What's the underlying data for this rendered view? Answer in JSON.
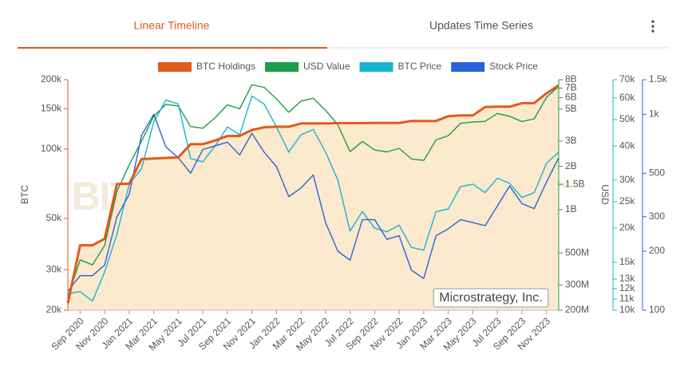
{
  "tabs": [
    {
      "label": "Linear Timeline",
      "active": true
    },
    {
      "label": "Updates Time Series",
      "active": false
    }
  ],
  "chart_data": {
    "type": "line",
    "legend": "top",
    "ylabel": "BTC",
    "y2label": "USD",
    "watermark": "BITCOINTREASURIES.NET",
    "annotation": "Microstrategy, Inc.",
    "log_scale": true,
    "grid": false,
    "x": [
      "2020-08",
      "2020-09",
      "2020-10",
      "2020-11",
      "2020-12",
      "2021-01",
      "2021-02",
      "2021-03",
      "2021-04",
      "2021-05",
      "2021-06",
      "2021-07",
      "2021-08",
      "2021-09",
      "2021-10",
      "2021-11",
      "2021-12",
      "2022-01",
      "2022-02",
      "2022-03",
      "2022-04",
      "2022-05",
      "2022-06",
      "2022-07",
      "2022-08",
      "2022-09",
      "2022-10",
      "2022-11",
      "2022-12",
      "2023-01",
      "2023-02",
      "2023-03",
      "2023-04",
      "2023-05",
      "2023-06",
      "2023-07",
      "2023-08",
      "2023-09",
      "2023-10",
      "2023-11",
      "2023-12"
    ],
    "xlim": [
      "2020-08",
      "2023-12"
    ],
    "xticks": [
      {
        "value": "2020-09",
        "label": "Sep 2020"
      },
      {
        "value": "2020-11",
        "label": "Nov 2020"
      },
      {
        "value": "2021-01",
        "label": "Jan 2021"
      },
      {
        "value": "2021-03",
        "label": "Mar 2021"
      },
      {
        "value": "2021-05",
        "label": "May 2021"
      },
      {
        "value": "2021-07",
        "label": "Jul 2021"
      },
      {
        "value": "2021-09",
        "label": "Sep 2021"
      },
      {
        "value": "2021-11",
        "label": "Nov 2021"
      },
      {
        "value": "2022-01",
        "label": "Jan 2022"
      },
      {
        "value": "2022-03",
        "label": "Mar 2022"
      },
      {
        "value": "2022-05",
        "label": "May 2022"
      },
      {
        "value": "2022-07",
        "label": "Jul 2022"
      },
      {
        "value": "2022-09",
        "label": "Sep 2022"
      },
      {
        "value": "2022-11",
        "label": "Nov 2022"
      },
      {
        "value": "2023-01",
        "label": "Jan 2023"
      },
      {
        "value": "2023-03",
        "label": "Mar 2023"
      },
      {
        "value": "2023-05",
        "label": "May 2023"
      },
      {
        "value": "2023-07",
        "label": "Jul 2023"
      },
      {
        "value": "2023-09",
        "label": "Sep 2023"
      },
      {
        "value": "2023-11",
        "label": "Nov 2023"
      }
    ],
    "ylim": [
      20000,
      200000
    ],
    "yticks": [
      {
        "value": 20000,
        "label": "20k"
      },
      {
        "value": 30000,
        "label": "30k"
      },
      {
        "value": 50000,
        "label": "50k"
      },
      {
        "value": 100000,
        "label": "100k"
      },
      {
        "value": 150000,
        "label": "150k"
      },
      {
        "value": 200000,
        "label": "200k"
      }
    ],
    "y2lim": [
      200000000,
      8000000000
    ],
    "y2ticks": [
      {
        "value": 200000000,
        "label": "200M"
      },
      {
        "value": 300000000,
        "label": "300M"
      },
      {
        "value": 500000000,
        "label": "500M"
      },
      {
        "value": 1000000000,
        "label": "1B"
      },
      {
        "value": 1500000000,
        "label": "1.5B"
      },
      {
        "value": 2000000000,
        "label": "2B"
      },
      {
        "value": 3000000000,
        "label": "3B"
      },
      {
        "value": 5000000000,
        "label": "5B"
      },
      {
        "value": 6000000000,
        "label": "6B"
      },
      {
        "value": 7000000000,
        "label": "7B"
      },
      {
        "value": 8000000000,
        "label": "8B"
      }
    ],
    "y3lim": [
      10000,
      70000
    ],
    "y3ticks": [
      {
        "value": 10000,
        "label": "10k"
      },
      {
        "value": 11000,
        "label": "11k"
      },
      {
        "value": 12000,
        "label": "12k"
      },
      {
        "value": 13000,
        "label": "13k"
      },
      {
        "value": 15000,
        "label": "15k"
      },
      {
        "value": 20000,
        "label": "20k"
      },
      {
        "value": 25000,
        "label": "25k"
      },
      {
        "value": 30000,
        "label": "30k"
      },
      {
        "value": 40000,
        "label": "40k"
      },
      {
        "value": 50000,
        "label": "50k"
      },
      {
        "value": 60000,
        "label": "60k"
      },
      {
        "value": 70000,
        "label": "70k"
      }
    ],
    "y4lim": [
      100,
      1500
    ],
    "y4ticks": [
      100,
      200,
      300,
      500,
      {
        "value": 1000,
        "label": "1k"
      },
      {
        "value": 1500,
        "label": "1.5k"
      }
    ],
    "series": [
      {
        "name": "BTC Holdings",
        "color": "#e05a1a",
        "fill": "#fbe9cd",
        "axis": "y",
        "values": [
          21454,
          38250,
          38250,
          40824,
          70470,
          70784,
          90531,
          91064,
          91579,
          92079,
          105085,
          105085,
          108992,
          114042,
          114042,
          121044,
          124391,
          125051,
          125051,
          129218,
          129218,
          129218,
          129699,
          129699,
          129699,
          130000,
          130000,
          130000,
          132500,
          132500,
          132500,
          138955,
          140000,
          140000,
          152333,
          152800,
          152800,
          158245,
          158400,
          174530,
          189150
        ]
      },
      {
        "name": "USD Value",
        "color": "#1a9e48",
        "axis": "y2",
        "values": [
          247000000,
          448000000,
          413000000,
          563000000,
          1340000000,
          2050000000,
          2990000000,
          4460000000,
          5400000000,
          5250000000,
          3780000000,
          3680000000,
          4360000000,
          5360000000,
          5020000000,
          7380000000,
          7090000000,
          5880000000,
          4750000000,
          5690000000,
          5940000000,
          4910000000,
          3890000000,
          2530000000,
          2980000000,
          2600000000,
          2520000000,
          2670000000,
          2250000000,
          2200000000,
          3050000000,
          3270000000,
          3980000000,
          4060000000,
          4110000000,
          4660000000,
          4460000000,
          4100000000,
          4280000000,
          6020000000,
          7190000000
        ]
      },
      {
        "name": "BTC Price",
        "color": "#17b4d2",
        "axis": "y3",
        "values": [
          11500,
          11700,
          10800,
          13800,
          19000,
          29000,
          33000,
          49000,
          59000,
          57000,
          36000,
          35000,
          40000,
          47000,
          44000,
          61000,
          57000,
          47000,
          38000,
          44000,
          46000,
          38000,
          30000,
          19500,
          23000,
          20000,
          19400,
          20500,
          17000,
          16600,
          23000,
          23500,
          28400,
          29000,
          27000,
          30500,
          29200,
          25900,
          27000,
          34500,
          38000
        ]
      },
      {
        "name": "Stock Price",
        "color": "#2a63d9",
        "axis": "y4",
        "values": [
          125,
          150,
          150,
          170,
          300,
          390,
          780,
          1000,
          680,
          600,
          500,
          660,
          690,
          720,
          620,
          800,
          640,
          540,
          380,
          420,
          490,
          280,
          200,
          180,
          290,
          290,
          230,
          240,
          160,
          145,
          240,
          260,
          290,
          280,
          270,
          340,
          430,
          350,
          330,
          450,
          600
        ]
      }
    ]
  }
}
